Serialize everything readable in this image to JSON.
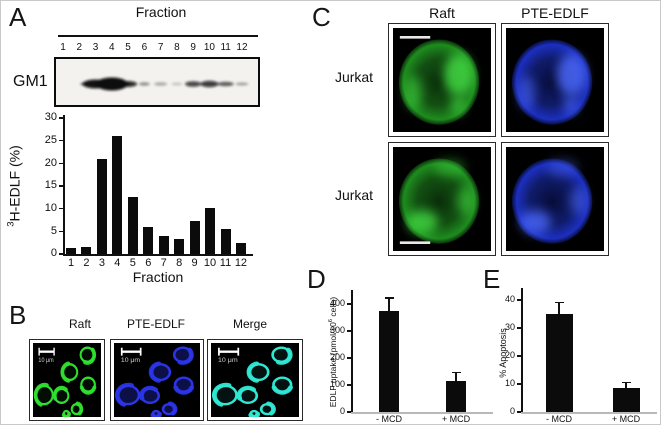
{
  "panels": {
    "a": {
      "letter": "A",
      "blot": {
        "title": "Fraction",
        "row_label": "GM1",
        "lanes": [
          "1",
          "2",
          "3",
          "4",
          "5",
          "6",
          "7",
          "8",
          "9",
          "10",
          "11",
          "12"
        ],
        "bands": [
          {
            "lane": 3,
            "w": 26,
            "h": 9,
            "o": 0.95
          },
          {
            "lane": 4,
            "w": 32,
            "h": 13,
            "o": 1
          },
          {
            "lane": 5,
            "w": 18,
            "h": 6,
            "o": 0.85
          },
          {
            "lane": 6,
            "w": 11,
            "h": 3.5,
            "o": 0.4
          },
          {
            "lane": 7,
            "w": 13,
            "h": 3.5,
            "o": 0.3
          },
          {
            "lane": 8,
            "w": 11,
            "h": 2.5,
            "o": 0.22
          },
          {
            "lane": 9,
            "w": 16,
            "h": 5.5,
            "o": 0.75
          },
          {
            "lane": 10,
            "w": 18,
            "h": 6.5,
            "o": 0.8
          },
          {
            "lane": 11,
            "w": 16,
            "h": 4.5,
            "o": 0.6
          },
          {
            "lane": 12,
            "w": 13,
            "h": 3,
            "o": 0.35
          }
        ]
      }
    },
    "b": {
      "letter": "B",
      "headers": [
        "Raft",
        "PTE-EDLF",
        "Merge"
      ],
      "scale_bar_label": "10 μm"
    },
    "c": {
      "letter": "C",
      "col_headers": [
        "Raft",
        "PTE-EDLF"
      ],
      "row_labels": [
        "Jurkat",
        "Jurkat"
      ]
    },
    "d": {
      "letter": "D"
    },
    "e": {
      "letter": "E"
    }
  },
  "colors": {
    "raft_green": "#2ee02e",
    "pte_blue": "#2a35e8",
    "merge_cyan": "#2fe8d4",
    "bar_black": "#0b0b0b"
  },
  "chart_data": [
    {
      "id": "chartA",
      "type": "bar",
      "title": "",
      "xlabel": "Fraction",
      "ylabel": "³H-EDLF (%)",
      "ylabel_parts": {
        "sup": "3",
        "main": "H-EDLF (%)"
      },
      "categories": [
        "1",
        "2",
        "3",
        "4",
        "5",
        "6",
        "7",
        "8",
        "9",
        "10",
        "11",
        "12"
      ],
      "values": [
        1.3,
        1.5,
        21,
        26,
        12.5,
        6,
        3.9,
        3.3,
        7.3,
        10.2,
        5.6,
        2.4
      ],
      "yticks": [
        0,
        5,
        10,
        15,
        20,
        25,
        30
      ],
      "ylim": [
        0,
        30
      ],
      "grid": false,
      "legend": null
    },
    {
      "id": "chartD",
      "type": "bar",
      "title": "",
      "xlabel": "",
      "ylabel": "EDLF uptake (pmol/10⁶ cells)",
      "ylabel_parts": {
        "pre": "EDLF uptake (pmol/10",
        "sup": "6",
        "post": " cells)"
      },
      "categories": [
        "- MCD",
        "+ MCD"
      ],
      "values": [
        375,
        115
      ],
      "errors": [
        47,
        31
      ],
      "yticks": [
        0,
        100,
        200,
        300,
        400
      ],
      "ylim": [
        0,
        450
      ],
      "grid": false,
      "legend": null
    },
    {
      "id": "chartE",
      "type": "bar",
      "title": "",
      "xlabel": "",
      "ylabel": "% Apoptosis",
      "ylabel_parts": {
        "main": "% Apoptosis"
      },
      "categories": [
        "- MCD",
        "+ MCD"
      ],
      "values": [
        35,
        8.5
      ],
      "errors": [
        4,
        2
      ],
      "yticks": [
        0,
        10,
        20,
        30,
        40
      ],
      "ylim": [
        0,
        44
      ],
      "grid": false,
      "legend": null
    }
  ]
}
